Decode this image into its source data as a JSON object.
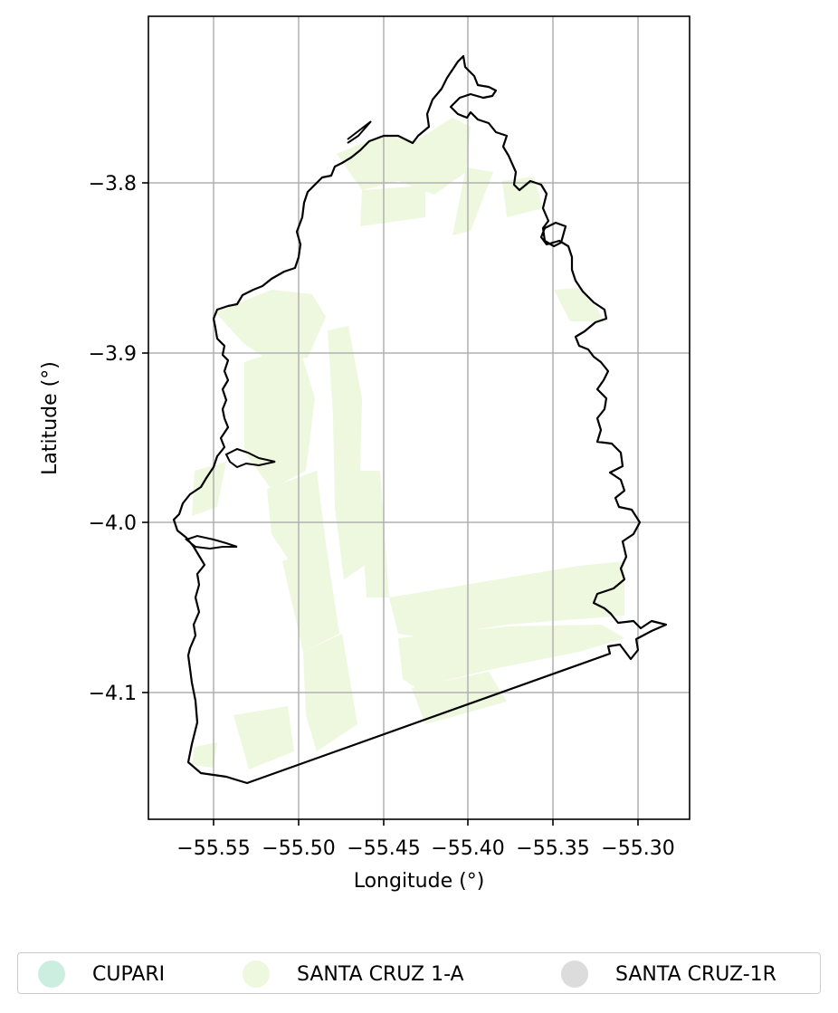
{
  "map": {
    "x_axis_label": "Longitude (°)",
    "y_axis_label": "Latitude (°)",
    "x_ticks": [
      "−55.55",
      "−55.50",
      "−55.45",
      "−55.40",
      "−55.35",
      "−55.30"
    ],
    "y_ticks": [
      "−3.8",
      "−3.9",
      "−4.0",
      "−4.1"
    ],
    "x_range": [
      -55.588,
      -55.272
    ],
    "y_range": [
      -4.175,
      -3.702
    ],
    "grid": true,
    "boundary_color": "#000000",
    "fill_color": "#eef8de"
  },
  "legend": {
    "placement": "bottom",
    "items": [
      {
        "label": "CUPARI",
        "color": "#cceee0"
      },
      {
        "label": "SANTA CRUZ 1-A",
        "color": "#eef8de"
      },
      {
        "label": "SANTA CRUZ-1R",
        "color": "#dcdcdc"
      }
    ]
  }
}
